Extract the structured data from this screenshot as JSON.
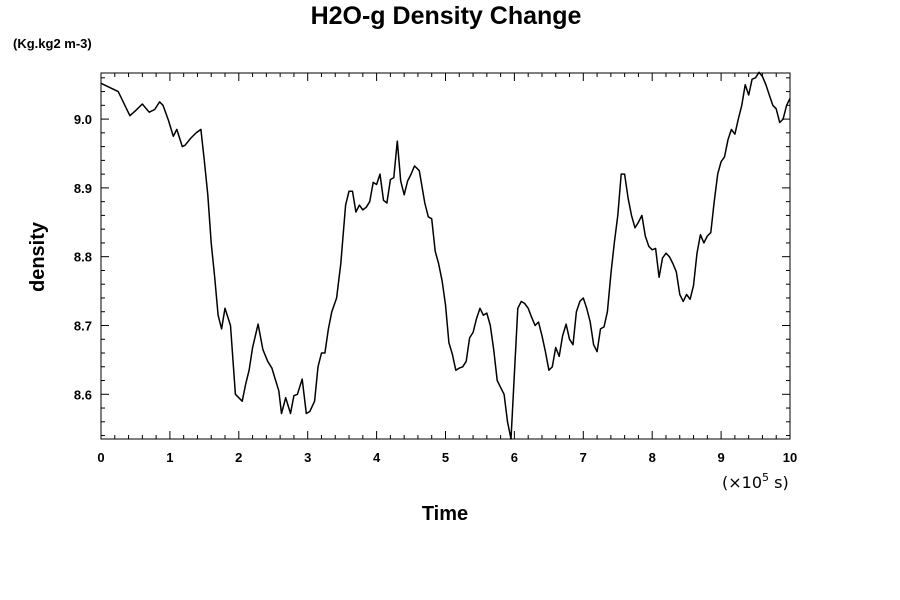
{
  "chart_data": {
    "type": "line",
    "title": "H2O-g Density Change",
    "ylabel": "density",
    "yunit": "(Kg.kg2 m-3)",
    "xlabel": "Time",
    "x_scale_text": "(×10",
    "x_scale_exp": "5",
    "x_scale_unit": " s)",
    "xlim": [
      0,
      10
    ],
    "ylim": [
      8.535,
      9.067
    ],
    "x_ticks": [
      0,
      1,
      2,
      3,
      4,
      5,
      6,
      7,
      8,
      9,
      10
    ],
    "x_tick_labels": [
      "0",
      "1",
      "2",
      "3",
      "4",
      "5",
      "6",
      "7",
      "8",
      "9",
      "10"
    ],
    "y_ticks": [
      8.6,
      8.7,
      8.8,
      8.9,
      9.0
    ],
    "y_tick_labels": [
      "8.6",
      "8.7",
      "8.8",
      "8.9",
      "9.0"
    ],
    "grid": false,
    "series": [
      {
        "name": "",
        "x": [
          0.0,
          0.25,
          0.42,
          0.5,
          0.6,
          0.7,
          0.78,
          0.85,
          0.9,
          0.98,
          1.05,
          1.1,
          1.18,
          1.22,
          1.3,
          1.38,
          1.45,
          1.5,
          1.55,
          1.6,
          1.65,
          1.7,
          1.75,
          1.8,
          1.88,
          1.95,
          2.05,
          2.1,
          2.15,
          2.2,
          2.28,
          2.35,
          2.42,
          2.48,
          2.52,
          2.58,
          2.62,
          2.68,
          2.75,
          2.8,
          2.85,
          2.92,
          2.98,
          3.03,
          3.1,
          3.15,
          3.2,
          3.25,
          3.3,
          3.35,
          3.42,
          3.48,
          3.55,
          3.6,
          3.65,
          3.7,
          3.75,
          3.8,
          3.85,
          3.9,
          3.95,
          4.0,
          4.05,
          4.1,
          4.15,
          4.2,
          4.25,
          4.3,
          4.35,
          4.4,
          4.45,
          4.5,
          4.55,
          4.62,
          4.7,
          4.75,
          4.8,
          4.85,
          4.9,
          4.95,
          5.0,
          5.05,
          5.1,
          5.15,
          5.2,
          5.25,
          5.3,
          5.35,
          5.4,
          5.45,
          5.5,
          5.55,
          5.6,
          5.65,
          5.7,
          5.75,
          5.8,
          5.85,
          5.9,
          5.95,
          6.0,
          6.05,
          6.1,
          6.15,
          6.2,
          6.25,
          6.3,
          6.35,
          6.4,
          6.45,
          6.5,
          6.55,
          6.6,
          6.65,
          6.7,
          6.75,
          6.8,
          6.85,
          6.9,
          6.95,
          7.0,
          7.05,
          7.1,
          7.15,
          7.2,
          7.25,
          7.3,
          7.35,
          7.4,
          7.45,
          7.5,
          7.55,
          7.6,
          7.65,
          7.7,
          7.75,
          7.8,
          7.85,
          7.9,
          7.95,
          8.0,
          8.05,
          8.1,
          8.15,
          8.2,
          8.25,
          8.3,
          8.35,
          8.4,
          8.45,
          8.5,
          8.55,
          8.6,
          8.65,
          8.7,
          8.75,
          8.8,
          8.85,
          8.9,
          8.95,
          9.0,
          9.05,
          9.1,
          9.15,
          9.2,
          9.25,
          9.3,
          9.35,
          9.4,
          9.45,
          9.5,
          9.55,
          9.6,
          9.65,
          9.7,
          9.75,
          9.8,
          9.85,
          9.9,
          9.95,
          10.0
        ],
        "y": [
          9.052,
          9.04,
          9.005,
          9.012,
          9.022,
          9.01,
          9.014,
          9.025,
          9.02,
          8.998,
          8.975,
          8.985,
          8.96,
          8.962,
          8.972,
          8.98,
          8.985,
          8.94,
          8.89,
          8.82,
          8.77,
          8.715,
          8.695,
          8.725,
          8.7,
          8.6,
          8.59,
          8.615,
          8.635,
          8.668,
          8.702,
          8.665,
          8.648,
          8.638,
          8.625,
          8.605,
          8.572,
          8.595,
          8.572,
          8.598,
          8.6,
          8.622,
          8.572,
          8.575,
          8.59,
          8.64,
          8.66,
          8.66,
          8.695,
          8.72,
          8.74,
          8.79,
          8.875,
          8.895,
          8.895,
          8.865,
          8.875,
          8.868,
          8.872,
          8.88,
          8.908,
          8.905,
          8.92,
          8.882,
          8.878,
          8.912,
          8.915,
          8.968,
          8.91,
          8.89,
          8.91,
          8.92,
          8.932,
          8.925,
          8.878,
          8.858,
          8.855,
          8.808,
          8.79,
          8.765,
          8.73,
          8.675,
          8.658,
          8.635,
          8.638,
          8.64,
          8.648,
          8.682,
          8.69,
          8.71,
          8.725,
          8.715,
          8.718,
          8.7,
          8.665,
          8.62,
          8.61,
          8.6,
          8.56,
          8.535,
          8.63,
          8.725,
          8.735,
          8.732,
          8.725,
          8.712,
          8.7,
          8.705,
          8.685,
          8.662,
          8.635,
          8.64,
          8.668,
          8.655,
          8.685,
          8.702,
          8.68,
          8.672,
          8.72,
          8.735,
          8.74,
          8.725,
          8.705,
          8.672,
          8.662,
          8.695,
          8.698,
          8.72,
          8.775,
          8.82,
          8.86,
          8.92,
          8.92,
          8.885,
          8.86,
          8.842,
          8.85,
          8.86,
          8.83,
          8.815,
          8.81,
          8.812,
          8.77,
          8.798,
          8.805,
          8.8,
          8.79,
          8.778,
          8.745,
          8.735,
          8.745,
          8.738,
          8.758,
          8.805,
          8.832,
          8.82,
          8.83,
          8.835,
          8.88,
          8.92,
          8.938,
          8.945,
          8.97,
          8.985,
          8.978,
          9.0,
          9.02,
          9.05,
          9.035,
          9.058,
          9.06,
          9.068,
          9.062,
          9.05,
          9.035,
          9.02,
          9.015,
          8.995,
          9.0,
          9.02,
          9.03
        ]
      }
    ]
  }
}
